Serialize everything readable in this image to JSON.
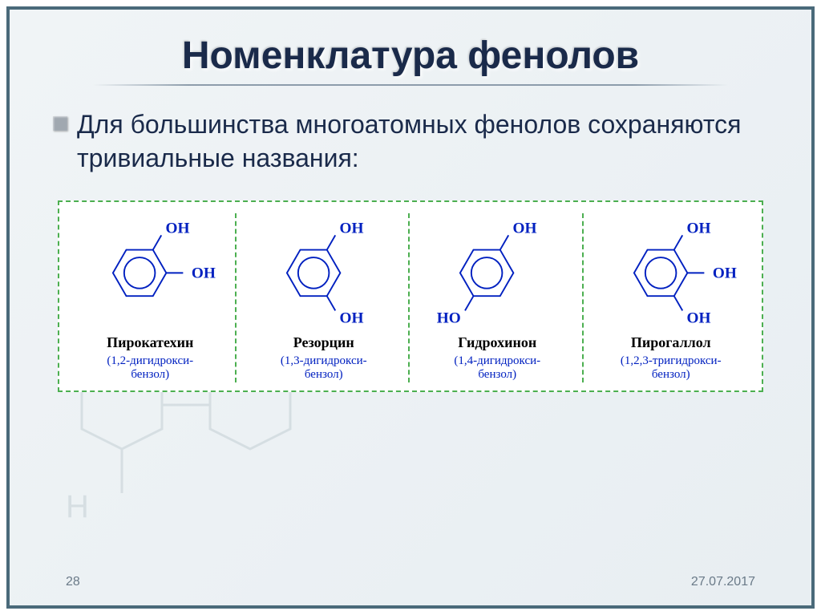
{
  "title": "Номенклатура фенолов",
  "subtitle": "Для большинства многоатомных фенолов сохраняются тривиальные названия:",
  "footer": {
    "page": "28",
    "date": "27.07.2017"
  },
  "colors": {
    "frame_border": "#4a6a7a",
    "bg_gradient_from": "#f0f4f6",
    "bg_gradient_to": "#e8eef2",
    "text_dark": "#1a2a4a",
    "dash_border": "#4caf50",
    "formula_blue": "#0020c0",
    "name_black": "#000000",
    "footer_gray": "#6a7a88"
  },
  "molecules": [
    {
      "name": "Пирокатехин",
      "iupac_line1": "(1,2-дигидрокси-",
      "iupac_line2": "бензол)",
      "oh_positions": [
        1,
        2
      ]
    },
    {
      "name": "Резорцин",
      "iupac_line1": "(1,3-дигидрокси-",
      "iupac_line2": "бензол)",
      "oh_positions": [
        1,
        3
      ]
    },
    {
      "name": "Гидрохинон",
      "iupac_line1": "(1,4-дигидрокси-",
      "iupac_line2": "бензол)",
      "oh_positions": [
        1,
        4
      ]
    },
    {
      "name": "Пирогаллол",
      "iupac_line1": "(1,2,3-тригидрокси-",
      "iupac_line2": "бензол)",
      "oh_positions": [
        1,
        2,
        3
      ]
    }
  ]
}
